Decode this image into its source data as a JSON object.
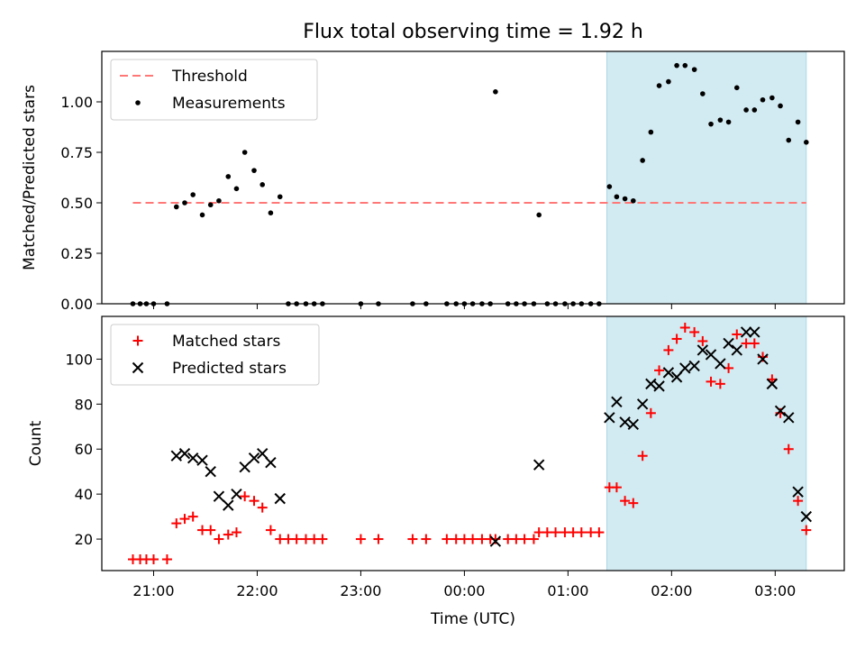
{
  "chart_data": {
    "type": "scatter",
    "title": "Flux total observing time = 1.92 h",
    "xlabel": "Time (UTC)",
    "x_ticks": [
      "21:00",
      "22:00",
      "23:00",
      "00:00",
      "01:00",
      "02:00",
      "03:00"
    ],
    "x_tick_hours": [
      21,
      22,
      23,
      24,
      25,
      26,
      27
    ],
    "xlim_hours": [
      20.5,
      27.667
    ],
    "highlight_span_hours": [
      25.375,
      27.3
    ],
    "panels": [
      {
        "ylabel": "Matched/Predicted stars",
        "ylim": [
          0,
          1.25
        ],
        "y_ticks": [
          0.0,
          0.25,
          0.5,
          0.75,
          1.0
        ],
        "y_tick_labels": [
          "0.00",
          "0.25",
          "0.50",
          "0.75",
          "1.00"
        ],
        "legend": {
          "position": "upper-left",
          "entries": [
            "Threshold",
            "Measurements"
          ]
        },
        "threshold": {
          "name": "Threshold",
          "value": 0.5,
          "x_range_hours": [
            20.8,
            27.3
          ],
          "color": "#ff7777"
        },
        "measurements": {
          "name": "Measurements",
          "color": "#000000",
          "points": [
            [
              20.8,
              0.0
            ],
            [
              20.87,
              0.0
            ],
            [
              20.93,
              0.0
            ],
            [
              21.0,
              0.0
            ],
            [
              21.13,
              0.0
            ],
            [
              21.22,
              0.48
            ],
            [
              21.3,
              0.5
            ],
            [
              21.38,
              0.54
            ],
            [
              21.47,
              0.44
            ],
            [
              21.55,
              0.49
            ],
            [
              21.63,
              0.51
            ],
            [
              21.72,
              0.63
            ],
            [
              21.8,
              0.57
            ],
            [
              21.88,
              0.75
            ],
            [
              21.97,
              0.66
            ],
            [
              22.05,
              0.59
            ],
            [
              22.13,
              0.45
            ],
            [
              22.22,
              0.53
            ],
            [
              22.3,
              0.0
            ],
            [
              22.38,
              0.0
            ],
            [
              22.47,
              0.0
            ],
            [
              22.55,
              0.0
            ],
            [
              22.63,
              0.0
            ],
            [
              23.0,
              0.0
            ],
            [
              23.17,
              0.0
            ],
            [
              23.5,
              0.0
            ],
            [
              23.63,
              0.0
            ],
            [
              23.83,
              0.0
            ],
            [
              23.92,
              0.0
            ],
            [
              24.0,
              0.0
            ],
            [
              24.08,
              0.0
            ],
            [
              24.17,
              0.0
            ],
            [
              24.25,
              0.0
            ],
            [
              24.3,
              1.05
            ],
            [
              24.42,
              0.0
            ],
            [
              24.5,
              0.0
            ],
            [
              24.58,
              0.0
            ],
            [
              24.67,
              0.0
            ],
            [
              24.72,
              0.44
            ],
            [
              24.8,
              0.0
            ],
            [
              24.88,
              0.0
            ],
            [
              24.97,
              0.0
            ],
            [
              25.05,
              0.0
            ],
            [
              25.13,
              0.0
            ],
            [
              25.22,
              0.0
            ],
            [
              25.3,
              0.0
            ],
            [
              25.4,
              0.58
            ],
            [
              25.47,
              0.53
            ],
            [
              25.55,
              0.52
            ],
            [
              25.63,
              0.51
            ],
            [
              25.72,
              0.71
            ],
            [
              25.8,
              0.85
            ],
            [
              25.88,
              1.08
            ],
            [
              25.97,
              1.1
            ],
            [
              26.05,
              1.18
            ],
            [
              26.13,
              1.18
            ],
            [
              26.22,
              1.16
            ],
            [
              26.3,
              1.04
            ],
            [
              26.38,
              0.89
            ],
            [
              26.47,
              0.91
            ],
            [
              26.55,
              0.9
            ],
            [
              26.63,
              1.07
            ],
            [
              26.72,
              0.96
            ],
            [
              26.8,
              0.96
            ],
            [
              26.88,
              1.01
            ],
            [
              26.97,
              1.02
            ],
            [
              27.05,
              0.98
            ],
            [
              27.13,
              0.81
            ],
            [
              27.22,
              0.9
            ],
            [
              27.3,
              0.8
            ]
          ]
        }
      },
      {
        "ylabel": "Count",
        "ylim": [
          6,
          119
        ],
        "y_ticks": [
          20,
          40,
          60,
          80,
          100
        ],
        "y_tick_labels": [
          "20",
          "40",
          "60",
          "80",
          "100"
        ],
        "legend": {
          "position": "upper-left",
          "entries": [
            "Matched stars",
            "Predicted stars"
          ]
        },
        "series": [
          {
            "name": "Matched stars",
            "marker": "plus",
            "color": "#ff0000",
            "points": [
              [
                20.8,
                11
              ],
              [
                20.87,
                11
              ],
              [
                20.93,
                11
              ],
              [
                21.0,
                11
              ],
              [
                21.13,
                11
              ],
              [
                21.22,
                27
              ],
              [
                21.3,
                29
              ],
              [
                21.38,
                30
              ],
              [
                21.47,
                24
              ],
              [
                21.55,
                24
              ],
              [
                21.63,
                20
              ],
              [
                21.72,
                22
              ],
              [
                21.8,
                23
              ],
              [
                21.88,
                39
              ],
              [
                21.97,
                37
              ],
              [
                22.05,
                34
              ],
              [
                22.13,
                24
              ],
              [
                22.22,
                20
              ],
              [
                22.3,
                20
              ],
              [
                22.38,
                20
              ],
              [
                22.47,
                20
              ],
              [
                22.55,
                20
              ],
              [
                22.63,
                20
              ],
              [
                23.0,
                20
              ],
              [
                23.17,
                20
              ],
              [
                23.5,
                20
              ],
              [
                23.63,
                20
              ],
              [
                23.83,
                20
              ],
              [
                23.92,
                20
              ],
              [
                24.0,
                20
              ],
              [
                24.08,
                20
              ],
              [
                24.17,
                20
              ],
              [
                24.25,
                20
              ],
              [
                24.3,
                20
              ],
              [
                24.42,
                20
              ],
              [
                24.5,
                20
              ],
              [
                24.58,
                20
              ],
              [
                24.67,
                20
              ],
              [
                24.72,
                23
              ],
              [
                24.8,
                23
              ],
              [
                24.88,
                23
              ],
              [
                24.97,
                23
              ],
              [
                25.05,
                23
              ],
              [
                25.13,
                23
              ],
              [
                25.22,
                23
              ],
              [
                25.3,
                23
              ],
              [
                25.4,
                43
              ],
              [
                25.47,
                43
              ],
              [
                25.55,
                37
              ],
              [
                25.63,
                36
              ],
              [
                25.72,
                57
              ],
              [
                25.8,
                76
              ],
              [
                25.88,
                95
              ],
              [
                25.97,
                104
              ],
              [
                26.05,
                109
              ],
              [
                26.13,
                114
              ],
              [
                26.22,
                112
              ],
              [
                26.3,
                108
              ],
              [
                26.38,
                90
              ],
              [
                26.47,
                89
              ],
              [
                26.55,
                96
              ],
              [
                26.63,
                111
              ],
              [
                26.72,
                107
              ],
              [
                26.8,
                107
              ],
              [
                26.88,
                101
              ],
              [
                26.97,
                91
              ],
              [
                27.05,
                76
              ],
              [
                27.13,
                60
              ],
              [
                27.22,
                37
              ],
              [
                27.3,
                24
              ]
            ]
          },
          {
            "name": "Predicted stars",
            "marker": "x",
            "color": "#000000",
            "points": [
              [
                21.22,
                57
              ],
              [
                21.3,
                58
              ],
              [
                21.38,
                56
              ],
              [
                21.47,
                55
              ],
              [
                21.55,
                50
              ],
              [
                21.63,
                39
              ],
              [
                21.72,
                35
              ],
              [
                21.8,
                40
              ],
              [
                21.88,
                52
              ],
              [
                21.97,
                56
              ],
              [
                22.05,
                58
              ],
              [
                22.13,
                54
              ],
              [
                22.22,
                38
              ],
              [
                24.3,
                19
              ],
              [
                24.72,
                53
              ],
              [
                25.4,
                74
              ],
              [
                25.47,
                81
              ],
              [
                25.55,
                72
              ],
              [
                25.63,
                71
              ],
              [
                25.72,
                80
              ],
              [
                25.8,
                89
              ],
              [
                25.88,
                88
              ],
              [
                25.97,
                94
              ],
              [
                26.05,
                92
              ],
              [
                26.13,
                96
              ],
              [
                26.22,
                97
              ],
              [
                26.3,
                104
              ],
              [
                26.38,
                102
              ],
              [
                26.47,
                98
              ],
              [
                26.55,
                107
              ],
              [
                26.63,
                104
              ],
              [
                26.72,
                112
              ],
              [
                26.8,
                112
              ],
              [
                26.88,
                100
              ],
              [
                26.97,
                89
              ],
              [
                27.05,
                77
              ],
              [
                27.13,
                74
              ],
              [
                27.22,
                41
              ],
              [
                27.3,
                30
              ]
            ]
          }
        ]
      }
    ],
    "span_color": "#add8e6"
  }
}
